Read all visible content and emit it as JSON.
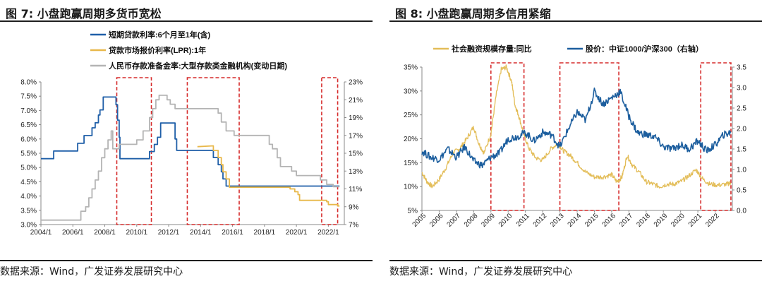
{
  "left": {
    "title": "图 7: 小盘跑赢周期多货币宽松",
    "source": "数据来源：Wind，广发证券发展研究中心",
    "chart_data": {
      "type": "line",
      "title": "小盘跑赢周期多货币宽松",
      "x_tick_labels": [
        "2004/1",
        "2006/1",
        "2008/1",
        "2010/1",
        "2012/1",
        "2014/1",
        "2016/1",
        "2018/1",
        "2020/1",
        "2022/1"
      ],
      "x_range": [
        2004.0,
        2023.0
      ],
      "y_left_range": [
        3.0,
        8.0
      ],
      "y_left_ticks": [
        "3.0%",
        "3.5%",
        "4.0%",
        "4.5%",
        "5.0%",
        "5.5%",
        "6.0%",
        "6.5%",
        "7.0%",
        "7.5%",
        "8.0%"
      ],
      "y_right_range": [
        7,
        23
      ],
      "y_right_ticks": [
        "7%",
        "9%",
        "11%",
        "13%",
        "15%",
        "17%",
        "19%",
        "21%",
        "23%"
      ],
      "legend_position": "top-center",
      "series": [
        {
          "name": "短期贷款利率:6个月至1年(含)",
          "axis": "left",
          "color": "#1f5fa8",
          "x": [
            2004.0,
            2004.8,
            2004.8,
            2006.3,
            2006.3,
            2006.7,
            2006.7,
            2007.2,
            2007.2,
            2007.4,
            2007.4,
            2007.6,
            2007.6,
            2007.7,
            2007.7,
            2007.9,
            2007.9,
            2008.7,
            2008.7,
            2008.8,
            2008.8,
            2008.9,
            2008.9,
            2008.95,
            2008.95,
            2010.8,
            2010.8,
            2011.1,
            2011.1,
            2011.3,
            2011.3,
            2011.5,
            2011.5,
            2012.4,
            2012.4,
            2012.5,
            2012.5,
            2014.8,
            2014.8,
            2015.1,
            2015.1,
            2015.3,
            2015.3,
            2015.4,
            2015.4,
            2015.6,
            2015.6,
            2015.8,
            2015.8,
            2022.7
          ],
          "y": [
            5.31,
            5.31,
            5.58,
            5.58,
            5.85,
            5.85,
            6.12,
            6.12,
            6.39,
            6.39,
            6.57,
            6.57,
            6.84,
            6.84,
            7.02,
            7.02,
            7.47,
            7.47,
            7.2,
            7.2,
            6.66,
            6.66,
            6.06,
            6.06,
            5.31,
            5.31,
            5.56,
            5.56,
            5.81,
            5.81,
            6.06,
            6.06,
            6.56,
            6.56,
            6.0,
            6.0,
            5.6,
            5.6,
            5.35,
            5.35,
            5.1,
            5.1,
            4.85,
            4.85,
            4.6,
            4.6,
            4.35,
            4.35,
            4.35,
            4.35
          ]
        },
        {
          "name": "贷款市场报价利率(LPR):1年",
          "axis": "left",
          "color": "#e8b84a",
          "x": [
            2013.8,
            2014.8,
            2014.8,
            2015.1,
            2015.1,
            2015.3,
            2015.3,
            2015.4,
            2015.4,
            2015.6,
            2015.6,
            2015.8,
            2015.8,
            2019.6,
            2019.6,
            2019.9,
            2019.9,
            2020.1,
            2020.1,
            2020.2,
            2020.2,
            2020.3,
            2020.3,
            2021.9,
            2021.9,
            2022.0,
            2022.0,
            2022.6,
            2022.6,
            2022.7
          ],
          "y": [
            5.73,
            5.76,
            5.6,
            5.6,
            5.35,
            5.35,
            5.1,
            5.1,
            4.85,
            4.85,
            4.6,
            4.6,
            4.31,
            4.31,
            4.25,
            4.25,
            4.15,
            4.15,
            4.05,
            4.05,
            3.85,
            3.85,
            3.85,
            3.85,
            3.8,
            3.8,
            3.7,
            3.7,
            3.65,
            3.65
          ]
        },
        {
          "name": "人民币存款准备金率:大型存款类金融机构(变动日期)",
          "axis": "right",
          "color": "#b4b4b4",
          "x": [
            2004.0,
            2006.5,
            2006.5,
            2006.8,
            2006.8,
            2007.0,
            2007.0,
            2007.2,
            2007.2,
            2007.4,
            2007.4,
            2007.6,
            2007.6,
            2007.8,
            2007.8,
            2008.0,
            2008.0,
            2008.2,
            2008.2,
            2008.4,
            2008.4,
            2008.5,
            2008.5,
            2008.9,
            2008.9,
            2010.0,
            2010.0,
            2010.4,
            2010.4,
            2010.8,
            2010.8,
            2011.0,
            2011.0,
            2011.2,
            2011.2,
            2011.4,
            2011.4,
            2011.9,
            2011.9,
            2012.1,
            2012.1,
            2012.4,
            2012.4,
            2015.1,
            2015.1,
            2015.3,
            2015.3,
            2015.6,
            2015.6,
            2016.1,
            2016.1,
            2018.3,
            2018.3,
            2018.5,
            2018.5,
            2018.8,
            2018.8,
            2019.0,
            2019.0,
            2019.7,
            2019.7,
            2020.0,
            2020.0,
            2021.5,
            2021.5,
            2021.9,
            2021.9,
            2022.3,
            2022.3,
            2022.7
          ],
          "y": [
            7.5,
            7.5,
            8.5,
            8.5,
            9,
            9,
            10,
            10,
            11,
            11,
            12,
            12,
            13,
            13,
            14.5,
            14.5,
            15.5,
            15.5,
            16.5,
            16.5,
            17.5,
            17.5,
            15.5,
            15.5,
            16,
            16,
            16.5,
            16.5,
            17.5,
            17.5,
            19,
            19,
            20,
            20,
            21,
            21,
            21.5,
            21.5,
            21,
            21,
            20.5,
            20.5,
            20,
            20,
            19.5,
            19.5,
            18.5,
            18.5,
            17.5,
            17.5,
            17,
            17,
            16,
            16,
            15.5,
            15.5,
            14.5,
            14.5,
            13.5,
            13.5,
            13,
            13,
            12.5,
            12.5,
            12,
            12,
            11.5,
            11.5,
            11.25,
            11.25
          ]
        }
      ],
      "highlight_periods": [
        [
          "2008/10",
          "2010/12"
        ],
        [
          "2013/3",
          "2016/6"
        ],
        [
          "2021/8",
          "2022/8"
        ]
      ]
    }
  },
  "right": {
    "title": "图 8: 小盘跑赢周期多信用紧缩",
    "source": "数据来源：Wind，广发证券发展研究中心",
    "chart_data": {
      "type": "line",
      "title": "小盘跑赢周期多信用紧缩",
      "x_tick_labels": [
        "2005",
        "2006",
        "2007",
        "2008",
        "2009",
        "2010",
        "2011",
        "2012",
        "2013",
        "2014",
        "2015",
        "2016",
        "2017",
        "2018",
        "2019",
        "2020",
        "2021",
        "2022"
      ],
      "x_range": [
        2005.0,
        2023.0
      ],
      "y_left_range": [
        5,
        35
      ],
      "y_left_ticks": [
        "5%",
        "10%",
        "15%",
        "20%",
        "25%",
        "30%",
        "35%"
      ],
      "y_right_range": [
        0.0,
        3.5
      ],
      "y_right_ticks": [
        "0.0",
        "0.5",
        "1.0",
        "1.5",
        "2.0",
        "2.5",
        "3.0",
        "3.5"
      ],
      "legend_position": "top-center",
      "series": [
        {
          "name": "社会融资规模存量:同比",
          "axis": "left",
          "color": "#e3bd58",
          "x": [
            2005.0,
            2005.3,
            2005.6,
            2006.0,
            2006.4,
            2006.8,
            2007.2,
            2007.6,
            2008.0,
            2008.3,
            2008.6,
            2009.0,
            2009.3,
            2009.6,
            2009.9,
            2010.2,
            2010.4,
            2010.6,
            2010.9,
            2011.2,
            2011.6,
            2012.0,
            2012.5,
            2012.9,
            2013.2,
            2013.6,
            2014.0,
            2014.5,
            2015.0,
            2015.5,
            2016.0,
            2016.3,
            2016.6,
            2016.9,
            2017.2,
            2017.6,
            2018.0,
            2018.4,
            2018.8,
            2019.2,
            2019.6,
            2020.0,
            2020.4,
            2020.9,
            2021.3,
            2021.7,
            2022.2,
            2022.7,
            2022.9
          ],
          "y": [
            13,
            11,
            10,
            11.5,
            14,
            17,
            18,
            20,
            22.5,
            19,
            17,
            21,
            29,
            34.5,
            35,
            32,
            27,
            25,
            21,
            18,
            16,
            15.5,
            18,
            19,
            17.5,
            16.5,
            15,
            13,
            12,
            12,
            12.5,
            11,
            12,
            16.5,
            14.5,
            13,
            11,
            10.5,
            10,
            10.5,
            10.5,
            11,
            12,
            13.5,
            11.5,
            10.5,
            10.3,
            10.5,
            10.8
          ]
        },
        {
          "name": "股价：中证1000/沪深300（右轴）",
          "axis": "right",
          "color": "#1c5e9e",
          "x": [
            2005.0,
            2005.5,
            2006.0,
            2006.5,
            2007.0,
            2007.5,
            2008.0,
            2008.5,
            2009.0,
            2009.5,
            2010.0,
            2010.5,
            2011.0,
            2011.5,
            2012.0,
            2012.5,
            2013.0,
            2013.5,
            2014.0,
            2014.5,
            2015.0,
            2015.5,
            2016.0,
            2016.5,
            2017.0,
            2017.5,
            2018.0,
            2018.5,
            2019.0,
            2019.5,
            2020.0,
            2020.5,
            2021.0,
            2021.5,
            2022.0,
            2022.5,
            2022.9
          ],
          "y": [
            1.45,
            1.3,
            1.25,
            1.5,
            1.3,
            1.55,
            1.2,
            1.1,
            1.3,
            1.4,
            1.75,
            1.8,
            1.9,
            1.7,
            1.9,
            1.85,
            1.55,
            2.0,
            2.4,
            2.2,
            2.9,
            2.6,
            2.75,
            2.9,
            2.3,
            1.9,
            1.85,
            1.8,
            1.55,
            1.5,
            1.6,
            1.5,
            1.7,
            1.45,
            1.6,
            1.85,
            1.9
          ]
        }
      ],
      "highlight_periods": [
        [
          "2009/1",
          "2010/12"
        ],
        [
          "2013/1",
          "2016/6"
        ],
        [
          "2021/3",
          "2022/12"
        ]
      ]
    }
  }
}
